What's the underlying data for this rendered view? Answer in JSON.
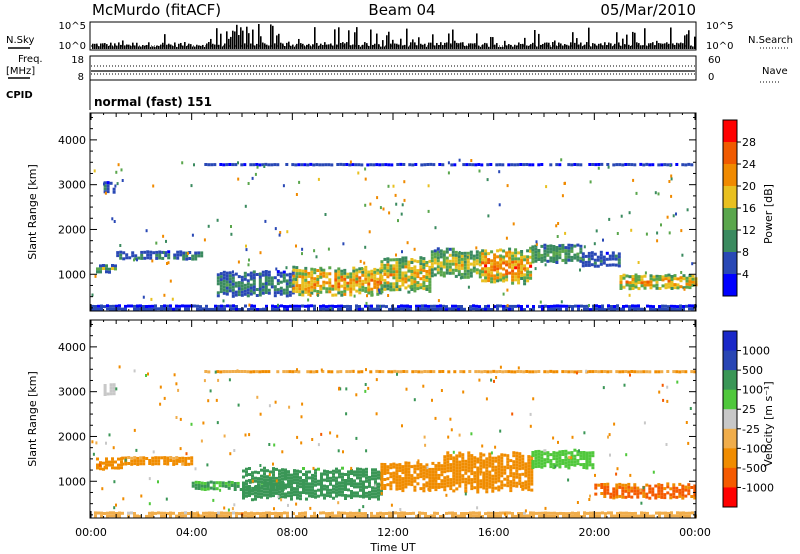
{
  "header": {
    "station": "McMurdo (fitACF)",
    "beam": "Beam 04",
    "date": "05/Mar/2010"
  },
  "top_panels": {
    "nsky_label": "N.Sky",
    "nsky_ticks": [
      "10^5",
      "10^0"
    ],
    "nsearch_label": "N.Search",
    "nsearch_ticks": [
      "10^5",
      "10^0"
    ],
    "freq_label": "Freq.",
    "freq_unit": "[MHz]",
    "freq_ticks": [
      "18",
      "8"
    ],
    "nave_label": "Nave",
    "nave_ticks": [
      "60",
      "0"
    ],
    "cpid_label": "CPID",
    "cpid_value": "normal (fast) 151"
  },
  "colors": {
    "power": [
      "#0000ff",
      "#2948b5",
      "#3a8a5f",
      "#5aa64c",
      "#e8c020",
      "#f08a00",
      "#f05a00",
      "#ff0000"
    ],
    "velocity": [
      "#ff0000",
      "#f55a00",
      "#f08c00",
      "#f0ad4b",
      "#c8c8c8",
      "#50c83c",
      "#3a9656",
      "#2946b4",
      "#1a28c8"
    ]
  },
  "chart_data": [
    {
      "type": "heatmap",
      "name": "power",
      "xlabel": "",
      "ylabel": "Slant Range [km]",
      "x_ticks": [
        "00:00",
        "04:00",
        "08:00",
        "12:00",
        "16:00",
        "20:00",
        "00:00"
      ],
      "y_ticks": [
        1000,
        2000,
        3000,
        4000
      ],
      "xlim_hours": [
        0,
        24
      ],
      "ylim_km": [
        180,
        4600
      ],
      "colorbar": {
        "label": "Power [dB]",
        "ticks": [
          "4",
          "8",
          "12",
          "16",
          "20",
          "24",
          "28"
        ],
        "range": [
          0,
          30
        ]
      },
      "echo_bands": [
        {
          "start_h": 0.2,
          "end_h": 1.0,
          "center_km": 1150,
          "width_km": 150,
          "value": 15
        },
        {
          "start_h": 1.0,
          "end_h": 4.4,
          "center_km": 1430,
          "width_km": 180,
          "value": 9
        },
        {
          "start_h": 5.0,
          "end_h": 8.0,
          "center_km": 800,
          "width_km": 500,
          "value": 10
        },
        {
          "start_h": 8.0,
          "end_h": 11.5,
          "center_km": 850,
          "width_km": 600,
          "value": 22
        },
        {
          "start_h": 11.5,
          "end_h": 13.5,
          "center_km": 1000,
          "width_km": 700,
          "value": 20
        },
        {
          "start_h": 13.5,
          "end_h": 15.5,
          "center_km": 1250,
          "width_km": 600,
          "value": 17
        },
        {
          "start_h": 15.5,
          "end_h": 17.5,
          "center_km": 1200,
          "width_km": 700,
          "value": 23
        },
        {
          "start_h": 17.5,
          "end_h": 19.5,
          "center_km": 1450,
          "width_km": 400,
          "value": 13
        },
        {
          "start_h": 19.5,
          "end_h": 21.0,
          "center_km": 1350,
          "width_km": 300,
          "value": 8
        },
        {
          "start_h": 21.0,
          "end_h": 24.0,
          "center_km": 850,
          "width_km": 300,
          "value": 21
        },
        {
          "start_h": 0.5,
          "end_h": 0.9,
          "center_km": 2950,
          "width_km": 250,
          "value": 8
        },
        {
          "start_h": 4.5,
          "end_h": 24.0,
          "center_km": 3450,
          "width_km": 60,
          "value": 7
        },
        {
          "start_h": 0.0,
          "end_h": 24.0,
          "center_km": 270,
          "width_km": 100,
          "value": 6
        }
      ]
    },
    {
      "type": "heatmap",
      "name": "velocity",
      "xlabel": "Time UT",
      "ylabel": "Slant Range [km]",
      "x_ticks": [
        "00:00",
        "04:00",
        "08:00",
        "12:00",
        "16:00",
        "20:00",
        "00:00"
      ],
      "y_ticks": [
        1000,
        2000,
        3000,
        4000
      ],
      "xlim_hours": [
        0,
        24
      ],
      "ylim_km": [
        180,
        4600
      ],
      "colorbar": {
        "label": "Velocity [m s⁻¹]",
        "ticks": [
          "1000",
          "500",
          "100",
          "25",
          "-25",
          "-100",
          "-500",
          "-1000"
        ],
        "range": [
          -1200,
          1200
        ]
      },
      "echo_bands": [
        {
          "start_h": 0.2,
          "end_h": 1.2,
          "center_km": 1400,
          "width_km": 250,
          "value": -300
        },
        {
          "start_h": 1.2,
          "end_h": 4.0,
          "center_km": 1480,
          "width_km": 150,
          "value": -200
        },
        {
          "start_h": 4.0,
          "end_h": 8.0,
          "center_km": 900,
          "width_km": 200,
          "value": 150
        },
        {
          "start_h": 6.0,
          "end_h": 11.5,
          "center_km": 950,
          "width_km": 650,
          "value": 250
        },
        {
          "start_h": 11.5,
          "end_h": 14.0,
          "center_km": 1100,
          "width_km": 600,
          "value": -400
        },
        {
          "start_h": 14.0,
          "end_h": 17.5,
          "center_km": 1200,
          "width_km": 800,
          "value": -350
        },
        {
          "start_h": 17.5,
          "end_h": 20.0,
          "center_km": 1500,
          "width_km": 400,
          "value": 60
        },
        {
          "start_h": 20.0,
          "end_h": 24.0,
          "center_km": 800,
          "width_km": 300,
          "value": -700
        },
        {
          "start_h": 0.5,
          "end_h": 0.9,
          "center_km": 3050,
          "width_km": 250,
          "value": 0
        },
        {
          "start_h": 4.5,
          "end_h": 24.0,
          "center_km": 3450,
          "width_km": 60,
          "value": -150
        },
        {
          "start_h": 0.0,
          "end_h": 24.0,
          "center_km": 270,
          "width_km": 100,
          "value": -60
        }
      ]
    }
  ]
}
